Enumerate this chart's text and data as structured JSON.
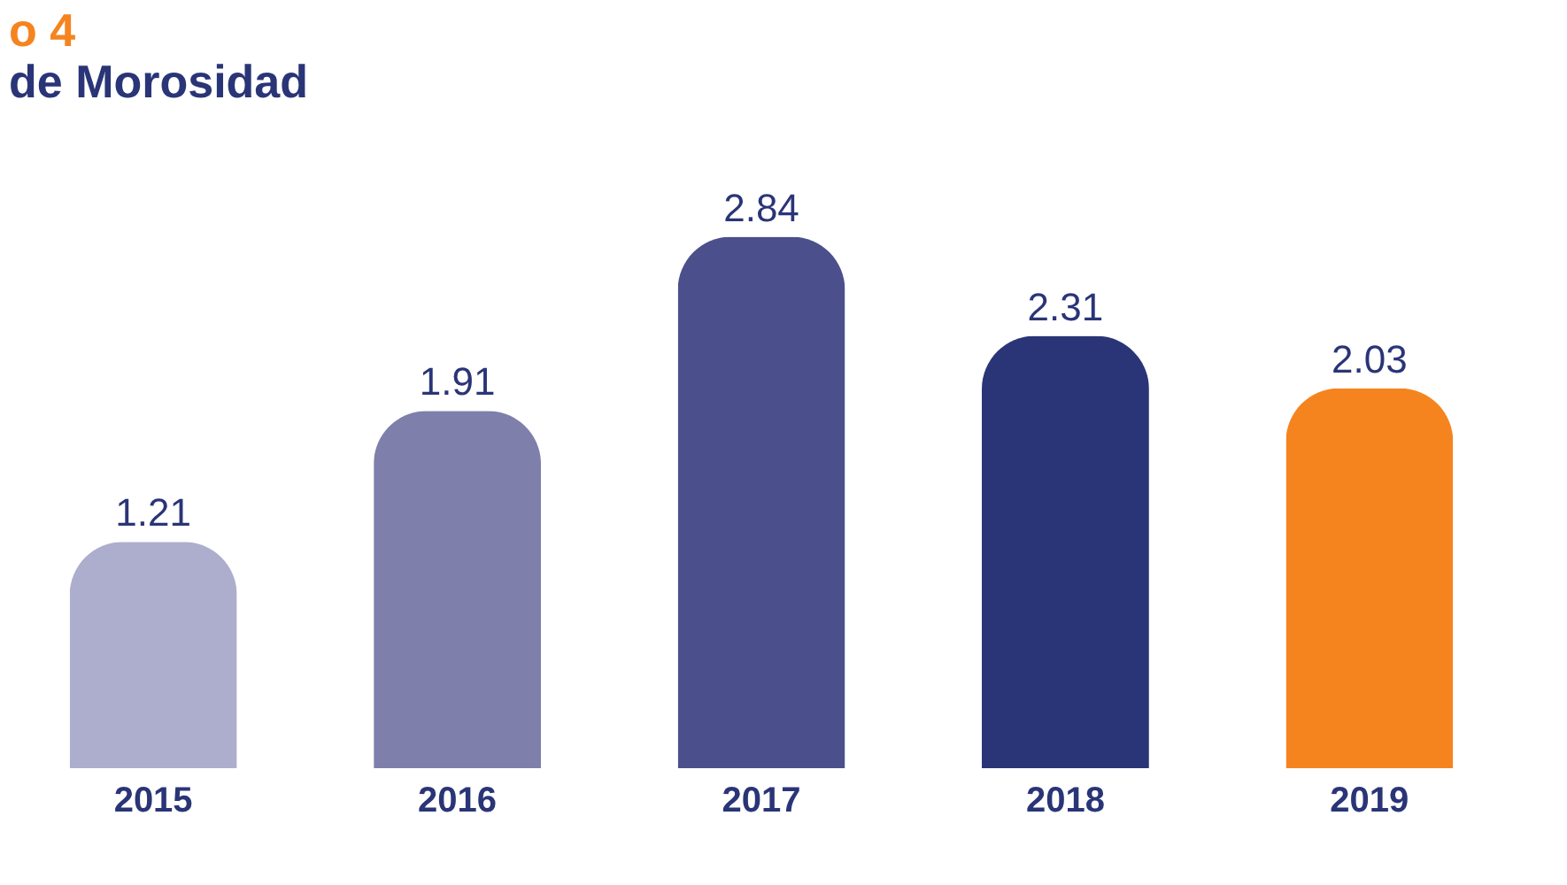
{
  "chart_data": {
    "type": "bar",
    "title": "o 4",
    "subtitle": "de Morosidad",
    "categories": [
      "2015",
      "2016",
      "2017",
      "2018",
      "2019"
    ],
    "values": [
      1.21,
      1.91,
      2.84,
      2.31,
      2.03
    ],
    "colors": [
      "#adadce",
      "#7f7fab",
      "#4b4f8b",
      "#2a3577",
      "#f5841f"
    ],
    "data_labels": true
  }
}
